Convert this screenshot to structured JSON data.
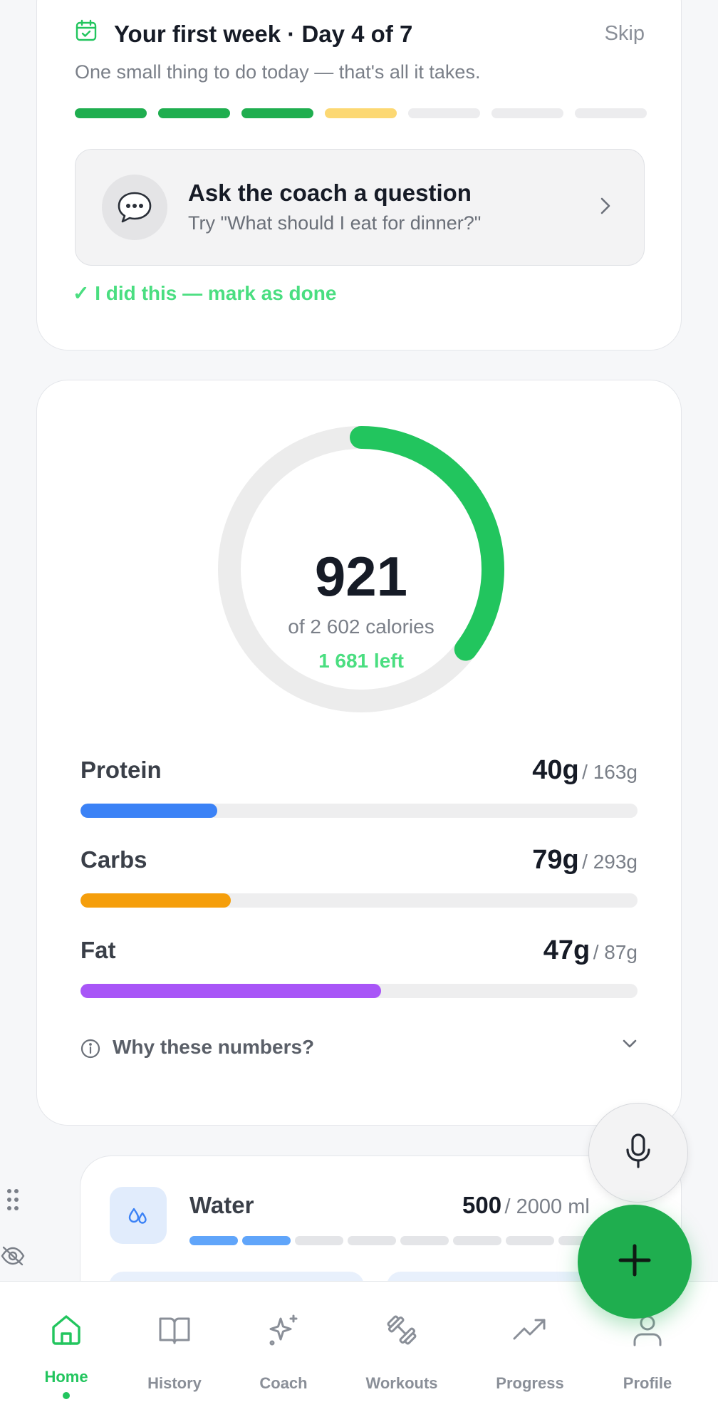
{
  "onboarding": {
    "title": "Your first week · Day 4 of 7",
    "skip_label": "Skip",
    "subtitle": "One small thing to do today — that's all it takes.",
    "days_total": 7,
    "days_completed": 3,
    "current_day": 4,
    "task": {
      "title": "Ask the coach a question",
      "subtitle": "Try \"What should I eat for dinner?\""
    },
    "done_label": "✓ I did this — mark as done",
    "colors": {
      "done": "#1fae4f",
      "current": "#fcd873",
      "pending": "#ececee"
    }
  },
  "calories": {
    "consumed": "921",
    "of_label": "of 2 602 calories",
    "left_label": "1 681 left",
    "consumed_value": 921,
    "goal_value": 2602,
    "ring_color": "#22c55e"
  },
  "macros": [
    {
      "name": "Protein",
      "current": "40g",
      "goal": "/ 163g",
      "current_value": 40,
      "goal_value": 163,
      "color": "#3b82f6"
    },
    {
      "name": "Carbs",
      "current": "79g",
      "goal": "/ 293g",
      "current_value": 79,
      "goal_value": 293,
      "color": "#f59e0b"
    },
    {
      "name": "Fat",
      "current": "47g",
      "goal": "/ 87g",
      "current_value": 47,
      "goal_value": 87,
      "color": "#a855f7"
    }
  ],
  "why_label": "Why these numbers?",
  "water": {
    "title": "Water",
    "current": "500",
    "goal": "/ 2000 ml",
    "current_value": 500,
    "goal_value": 2000,
    "segments_total": 8,
    "segments_filled": 2,
    "color": "#60a5fa"
  },
  "nav": [
    {
      "label": "Home",
      "icon": "home-icon",
      "active": true
    },
    {
      "label": "History",
      "icon": "book-icon",
      "active": false
    },
    {
      "label": "Coach",
      "icon": "sparkle-icon",
      "active": false
    },
    {
      "label": "Workouts",
      "icon": "dumbbell-icon",
      "active": false
    },
    {
      "label": "Progress",
      "icon": "trending-up-icon",
      "active": false
    },
    {
      "label": "Profile",
      "icon": "user-icon",
      "active": false
    }
  ],
  "accent_color": "#22c55e"
}
